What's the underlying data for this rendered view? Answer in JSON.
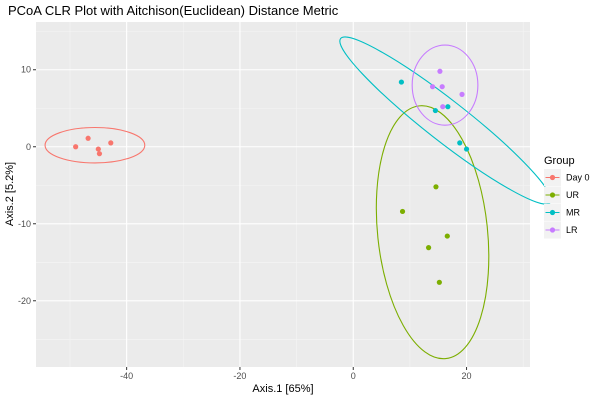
{
  "chart_data": {
    "type": "scatter",
    "title": "PCoA CLR Plot with Aitchison(Euclidean) Distance Metric",
    "xlabel": "Axis.1   [65%]",
    "ylabel": "Axis.2   [5.2%]",
    "xlim": [
      -56,
      31.2
    ],
    "ylim": [
      -28.6,
      16.2
    ],
    "x_ticks": [
      -40,
      -20,
      0,
      20
    ],
    "y_ticks": [
      -20,
      -10,
      0,
      10
    ],
    "grid": true,
    "legend_title": "Group",
    "legend_position": "right",
    "series": [
      {
        "name": "Day 0",
        "color": "#F8766D",
        "points": [
          [
            -49,
            0
          ],
          [
            -46.8,
            1.1
          ],
          [
            -45,
            -0.3
          ],
          [
            -44.8,
            -0.9
          ],
          [
            -42.8,
            0.5
          ]
        ],
        "ellipse": {
          "center": [
            -45.6,
            0.2
          ],
          "rx": 8.8,
          "ry": 2.3,
          "angle_deg": 0
        }
      },
      {
        "name": "UR",
        "color": "#7CAE00",
        "points": [
          [
            8.7,
            -8.4
          ],
          [
            13.3,
            -13.1
          ],
          [
            14.6,
            -5.2
          ],
          [
            15.2,
            -17.6
          ],
          [
            16.6,
            -11.6
          ]
        ],
        "ellipse": {
          "center": [
            14,
            -11.1
          ],
          "rx": 9.7,
          "ry": 16.5,
          "angle_deg": -6
        }
      },
      {
        "name": "MR",
        "color": "#00BFC4",
        "points": [
          [
            8.5,
            8.4
          ],
          [
            14.5,
            4.7
          ],
          [
            16.7,
            5.2
          ],
          [
            18.8,
            0.5
          ],
          [
            20,
            -0.3
          ]
        ],
        "ellipse": {
          "center": [
            16.3,
            3.4
          ],
          "rx": 3.6,
          "ry": 17.3,
          "angle_deg": -52
        }
      },
      {
        "name": "LR",
        "color": "#C77CFF",
        "points": [
          [
            14,
            7.8
          ],
          [
            15.3,
            9.8
          ],
          [
            15.7,
            7.8
          ],
          [
            15.8,
            5.2
          ],
          [
            19.2,
            6.8
          ]
        ],
        "ellipse": {
          "center": [
            16.2,
            8
          ],
          "rx": 5.8,
          "ry": 5.2,
          "angle_deg": 0
        }
      }
    ]
  }
}
